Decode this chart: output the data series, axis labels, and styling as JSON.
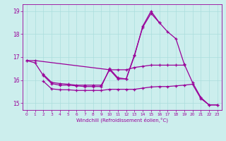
{
  "xlabel": "Windchill (Refroidissement éolien,°C)",
  "background_color": "#cceeed",
  "grid_color": "#aadddd",
  "line_color": "#990099",
  "x": [
    0,
    1,
    2,
    3,
    4,
    5,
    6,
    7,
    8,
    9,
    10,
    11,
    12,
    13,
    14,
    15,
    16,
    17,
    18,
    19,
    20,
    21,
    22,
    23
  ],
  "series1": [
    16.85,
    16.85,
    null,
    null,
    null,
    null,
    null,
    null,
    null,
    null,
    16.45,
    16.45,
    16.45,
    16.55,
    16.6,
    16.65,
    16.65,
    16.65,
    16.65,
    16.65,
    null,
    null,
    null,
    null
  ],
  "series2": [
    null,
    null,
    16.25,
    15.9,
    15.85,
    15.82,
    15.78,
    15.78,
    15.78,
    15.78,
    16.45,
    16.05,
    16.05,
    17.05,
    18.35,
    19.0,
    18.5,
    null,
    null,
    null,
    null,
    null,
    null,
    null
  ],
  "series3": [
    null,
    null,
    15.95,
    15.62,
    15.58,
    15.58,
    15.55,
    15.55,
    15.55,
    15.55,
    15.6,
    15.6,
    15.6,
    15.6,
    15.65,
    15.7,
    15.72,
    15.72,
    15.75,
    15.78,
    15.82,
    15.2,
    14.92,
    14.92
  ],
  "series4": [
    16.85,
    16.75,
    16.2,
    15.85,
    15.78,
    15.78,
    15.75,
    15.72,
    15.72,
    15.72,
    16.5,
    16.1,
    16.05,
    17.1,
    18.3,
    18.9,
    18.5,
    18.1,
    17.8,
    16.7,
    15.9,
    15.25,
    14.92,
    14.92
  ],
  "ylim": [
    14.7,
    19.3
  ],
  "xlim": [
    -0.5,
    23.5
  ],
  "yticks": [
    15,
    16,
    17,
    18,
    19
  ]
}
